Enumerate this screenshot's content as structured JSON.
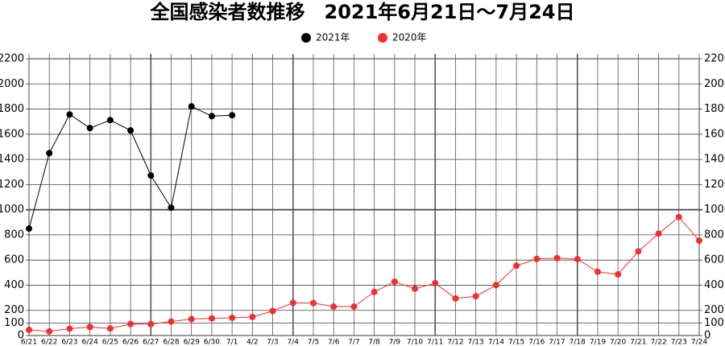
{
  "chart_data": {
    "type": "line",
    "title": "全国感染者数推移　2021年6月21日～7月24日",
    "categories": [
      "6/21",
      "6/22",
      "6/23",
      "6/24",
      "6/25",
      "6/26",
      "6/27",
      "6/28",
      "6/29",
      "6/30",
      "7/1",
      "4/2",
      "7/3",
      "7/4",
      "7/5",
      "7/6",
      "7/7",
      "7/8",
      "7/9",
      "7/10",
      "7/11",
      "7/12",
      "7/13",
      "7/14",
      "7/15",
      "7/16",
      "7/17",
      "7/18",
      "7/19",
      "7/20",
      "7/21",
      "7/22",
      "7/23",
      "7/24"
    ],
    "series": [
      {
        "name": "2021年",
        "color": "#000000",
        "values": [
          850,
          1450,
          1757,
          1649,
          1712,
          1630,
          1272,
          1016,
          1821,
          1744,
          1751,
          null,
          null,
          null,
          null,
          null,
          null,
          null,
          null,
          null,
          null,
          null,
          null,
          null,
          null,
          null,
          null,
          null,
          null,
          null,
          null,
          null,
          null,
          null
        ]
      },
      {
        "name": "2020年",
        "color": "#f03030",
        "values": [
          45,
          33,
          54,
          68,
          56,
          92,
          91,
          111,
          131,
          137,
          141,
          148,
          195,
          260,
          258,
          230,
          230,
          346,
          428,
          372,
          416,
          295,
          312,
          401,
          555,
          609,
          615,
          607,
          507,
          486,
          669,
          810,
          942,
          754
        ]
      }
    ],
    "ylim": [
      0,
      2200
    ],
    "yticks": [
      0,
      100,
      200,
      400,
      600,
      800,
      1000,
      1200,
      1400,
      1600,
      1800,
      2000,
      2200
    ],
    "grid": true,
    "legend": "top"
  }
}
